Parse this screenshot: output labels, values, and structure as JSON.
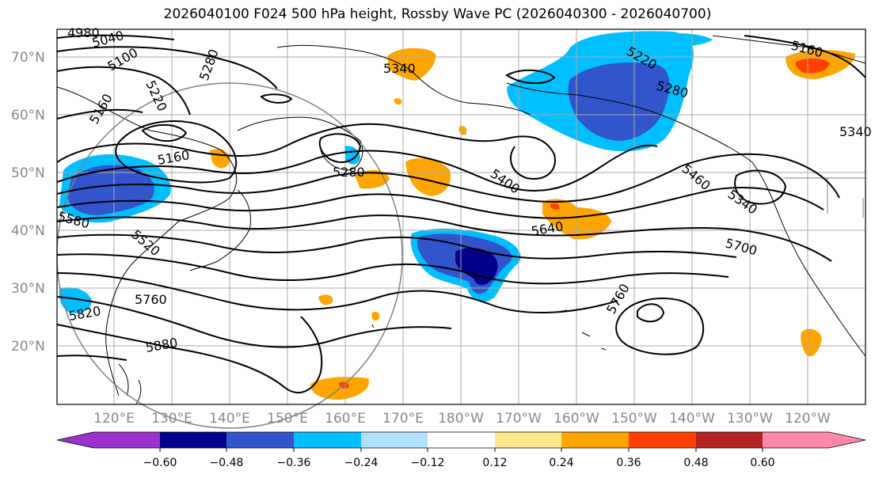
{
  "title": "2026040100 F024 500 hPa height, Rossby Wave PC (2026040300 - 2026040700)",
  "lat_labels": [
    "70°N",
    "60°N",
    "50°N",
    "40°N",
    "30°N",
    "20°N"
  ],
  "lon_labels": [
    "120°E",
    "130°E",
    "140°E",
    "150°E",
    "160°E",
    "170°E",
    "180°W",
    "170°W",
    "160°W",
    "150°W",
    "140°W",
    "130°W",
    "120°W"
  ],
  "contour_labels": [
    "4980",
    "5040",
    "5100",
    "5160",
    "5220",
    "5280",
    "5340",
    "5160",
    "5280",
    "5220",
    "5280",
    "5160",
    "5340",
    "5400",
    "5460",
    "5340",
    "5580",
    "5520",
    "5640",
    "5700",
    "5760",
    "5820",
    "5880",
    "5760"
  ],
  "colorbar": {
    "ticks": [
      "−0.60",
      "−0.48",
      "−0.36",
      "−0.24",
      "−0.12",
      "0.12",
      "0.24",
      "0.36",
      "0.48",
      "0.60"
    ],
    "colors": [
      "#9933cc",
      "#00008b",
      "#3355cc",
      "#00bfff",
      "#b0e2ff",
      "#ffffff",
      "#ffe98a",
      "#ffa500",
      "#ff4000",
      "#b22222",
      "#ff88aa"
    ]
  },
  "colors": {
    "neg_deep": "#00008b",
    "neg_mid": "#3355cc",
    "neg_light": "#00bfff",
    "pos_light": "#ffe98a",
    "pos_mid": "#ffa500",
    "pos_deep": "#ff4000"
  }
}
